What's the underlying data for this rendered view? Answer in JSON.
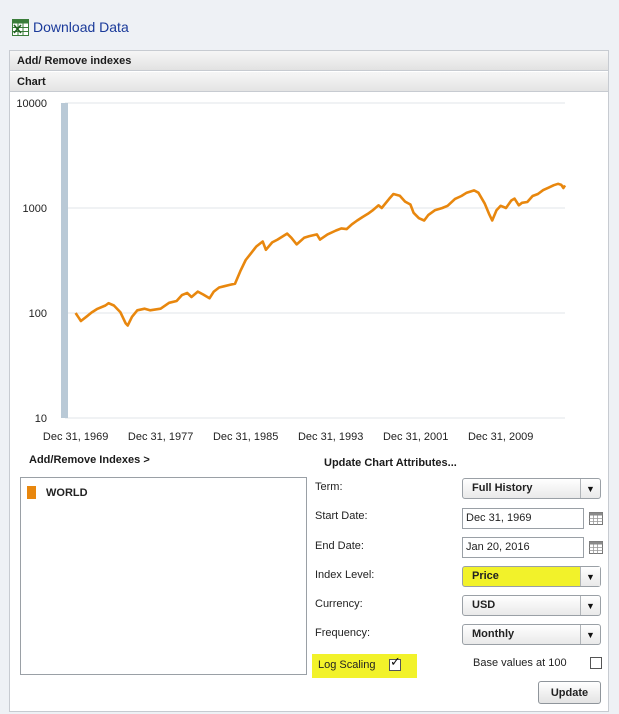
{
  "top_link": {
    "label": "Download Data",
    "icon": "excel-icon"
  },
  "panel": {
    "add_remove_header": "Add/ Remove indexes",
    "chart_header": "Chart"
  },
  "chart_data": {
    "type": "line",
    "title": "",
    "xlabel": "",
    "ylabel": "",
    "y_scale": "log",
    "ylim": [
      10,
      10000
    ],
    "y_ticks": [
      "10",
      "100",
      "1000",
      "10000"
    ],
    "x_ticks": [
      "Dec 31, 1969",
      "Dec 31, 1977",
      "Dec 31, 1985",
      "Dec 31, 1993",
      "Dec 31, 2001",
      "Dec 31, 2009"
    ],
    "xlim": [
      1969.0,
      2016.05
    ],
    "grid": true,
    "series": [
      {
        "name": "WORLD",
        "color": "#e8870e",
        "x": [
          1970.0,
          1970.3,
          1970.5,
          1971.0,
          1971.5,
          1972.0,
          1972.8,
          1973.1,
          1973.6,
          1974.2,
          1974.7,
          1974.9,
          1975.3,
          1975.8,
          1976.5,
          1977.0,
          1978.0,
          1978.8,
          1979.5,
          1980.0,
          1980.5,
          1980.9,
          1981.5,
          1982.0,
          1982.6,
          1983.0,
          1983.5,
          1984.0,
          1984.5,
          1985.0,
          1985.5,
          1986.0,
          1986.5,
          1987.0,
          1987.6,
          1987.9,
          1988.5,
          1989.0,
          1989.9,
          1990.3,
          1990.8,
          1991.5,
          1992.0,
          1992.7,
          1993.0,
          1993.7,
          1994.5,
          1995.0,
          1995.5,
          1996.0,
          1996.5,
          1997.0,
          1997.5,
          1998.0,
          1998.5,
          1998.8,
          1999.5,
          1999.9,
          2000.5,
          2001.0,
          2001.5,
          2001.8,
          2002.3,
          2002.8,
          2003.2,
          2003.8,
          2004.5,
          2005.0,
          2005.7,
          2006.3,
          2006.8,
          2007.5,
          2007.9,
          2008.5,
          2008.9,
          2009.2,
          2009.6,
          2010.0,
          2010.5,
          2011.0,
          2011.3,
          2011.7,
          2012.0,
          2012.5,
          2013.0,
          2013.5,
          2014.0,
          2014.5,
          2015.0,
          2015.4,
          2015.7,
          2015.9,
          2016.05
        ],
        "values": [
          100,
          90,
          84,
          92,
          101,
          109,
          118,
          124,
          118,
          102,
          80,
          76,
          92,
          106,
          110,
          106,
          110,
          125,
          130,
          148,
          155,
          142,
          160,
          150,
          138,
          160,
          175,
          180,
          185,
          190,
          250,
          320,
          370,
          430,
          480,
          400,
          470,
          500,
          570,
          520,
          450,
          520,
          540,
          560,
          500,
          560,
          610,
          640,
          630,
          700,
          760,
          820,
          880,
          960,
          1060,
          1000,
          1220,
          1360,
          1310,
          1150,
          1080,
          900,
          800,
          760,
          860,
          950,
          1000,
          1050,
          1220,
          1300,
          1400,
          1470,
          1400,
          1100,
          880,
          760,
          950,
          1050,
          1000,
          1180,
          1230,
          1060,
          1120,
          1140,
          1300,
          1360,
          1480,
          1560,
          1650,
          1700,
          1660,
          1550,
          1640
        ]
      }
    ]
  },
  "indexes": {
    "header": "Add/Remove Indexes >",
    "items": [
      {
        "label": "WORLD",
        "color": "#e8870e"
      }
    ]
  },
  "attributes": {
    "header": "Update Chart Attributes...",
    "term_label": "Term:",
    "term_value": "Full History",
    "start_label": "Start Date:",
    "start_value": "Dec 31, 1969",
    "end_label": "End Date:",
    "end_value": "Jan 20, 2016",
    "index_level_label": "Index Level:",
    "index_level_value": "Price",
    "currency_label": "Currency:",
    "currency_value": "USD",
    "frequency_label": "Frequency:",
    "frequency_value": "Monthly",
    "log_scaling_label": "Log Scaling",
    "log_scaling_checked": true,
    "base_values_label": "Base values at 100",
    "base_values_checked": false,
    "update_label": "Update",
    "highlight_color": "#f2f22a"
  }
}
